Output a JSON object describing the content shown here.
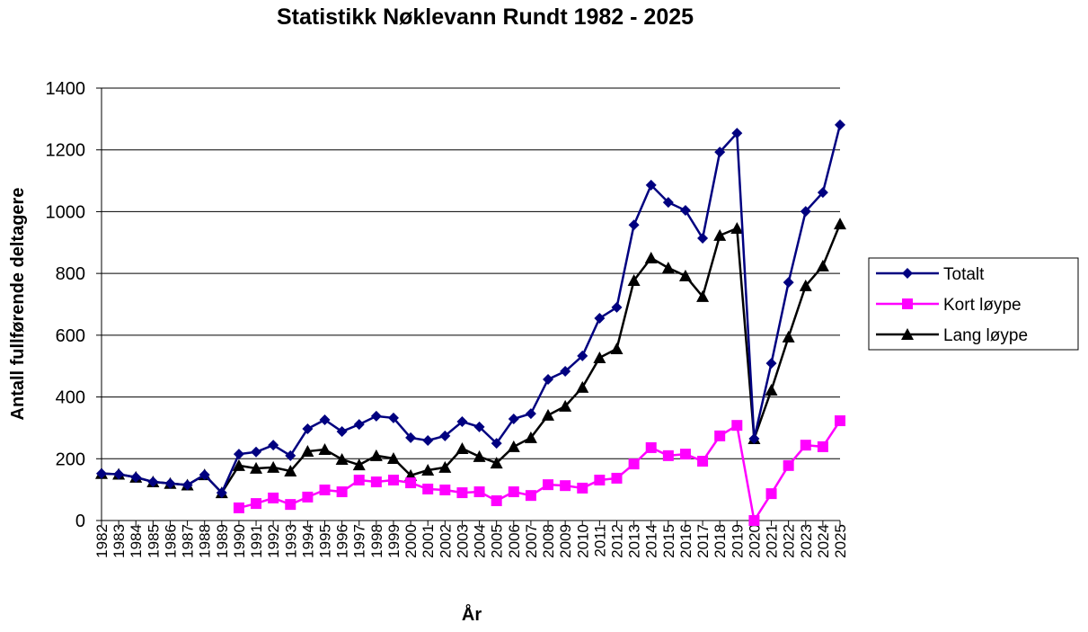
{
  "chart_data": {
    "type": "line",
    "title": "Statistikk Nøklevann Rundt 1982 - 2025",
    "xlabel": "År",
    "ylabel": "Antall fullførende deltagere",
    "ylim": [
      0,
      1400
    ],
    "yticks": [
      0,
      200,
      400,
      600,
      800,
      1000,
      1200,
      1400
    ],
    "grid": true,
    "legend_position": "right",
    "x": [
      1982,
      1983,
      1984,
      1985,
      1986,
      1987,
      1988,
      1989,
      1990,
      1991,
      1992,
      1993,
      1994,
      1995,
      1996,
      1997,
      1998,
      1999,
      2000,
      2001,
      2002,
      2003,
      2004,
      2005,
      2006,
      2007,
      2008,
      2009,
      2010,
      2011,
      2012,
      2013,
      2014,
      2015,
      2016,
      2017,
      2018,
      2019,
      2020,
      2021,
      2022,
      2023,
      2024,
      2025
    ],
    "series": [
      {
        "name": "Totalt",
        "color": "#000080",
        "marker": "diamond",
        "values": [
          152,
          150,
          140,
          125,
          120,
          115,
          148,
          90,
          215,
          222,
          244,
          210,
          297,
          326,
          288,
          311,
          338,
          332,
          268,
          259,
          274,
          320,
          303,
          250,
          329,
          346,
          457,
          483,
          533,
          655,
          690,
          957,
          1086,
          1030,
          1004,
          914,
          1193,
          1254,
          265,
          509,
          771,
          1001,
          1062,
          1281
        ]
      },
      {
        "name": "Kort løype",
        "color": "#ff00ff",
        "marker": "square",
        "values": [
          null,
          null,
          null,
          null,
          null,
          null,
          null,
          null,
          41,
          55,
          73,
          52,
          76,
          99,
          93,
          131,
          125,
          131,
          122,
          102,
          99,
          90,
          93,
          64,
          93,
          81,
          116,
          113,
          105,
          131,
          137,
          183,
          236,
          210,
          215,
          192,
          274,
          308,
          0,
          87,
          178,
          244,
          239,
          323
        ]
      },
      {
        "name": "Lang løype",
        "color": "#000000",
        "marker": "triangle",
        "values": [
          152,
          150,
          140,
          125,
          120,
          115,
          148,
          90,
          178,
          169,
          172,
          160,
          224,
          230,
          198,
          180,
          210,
          201,
          146,
          163,
          172,
          233,
          207,
          186,
          239,
          268,
          341,
          370,
          431,
          527,
          556,
          777,
          850,
          818,
          792,
          725,
          923,
          946,
          265,
          422,
          594,
          760,
          824,
          960
        ]
      }
    ]
  }
}
